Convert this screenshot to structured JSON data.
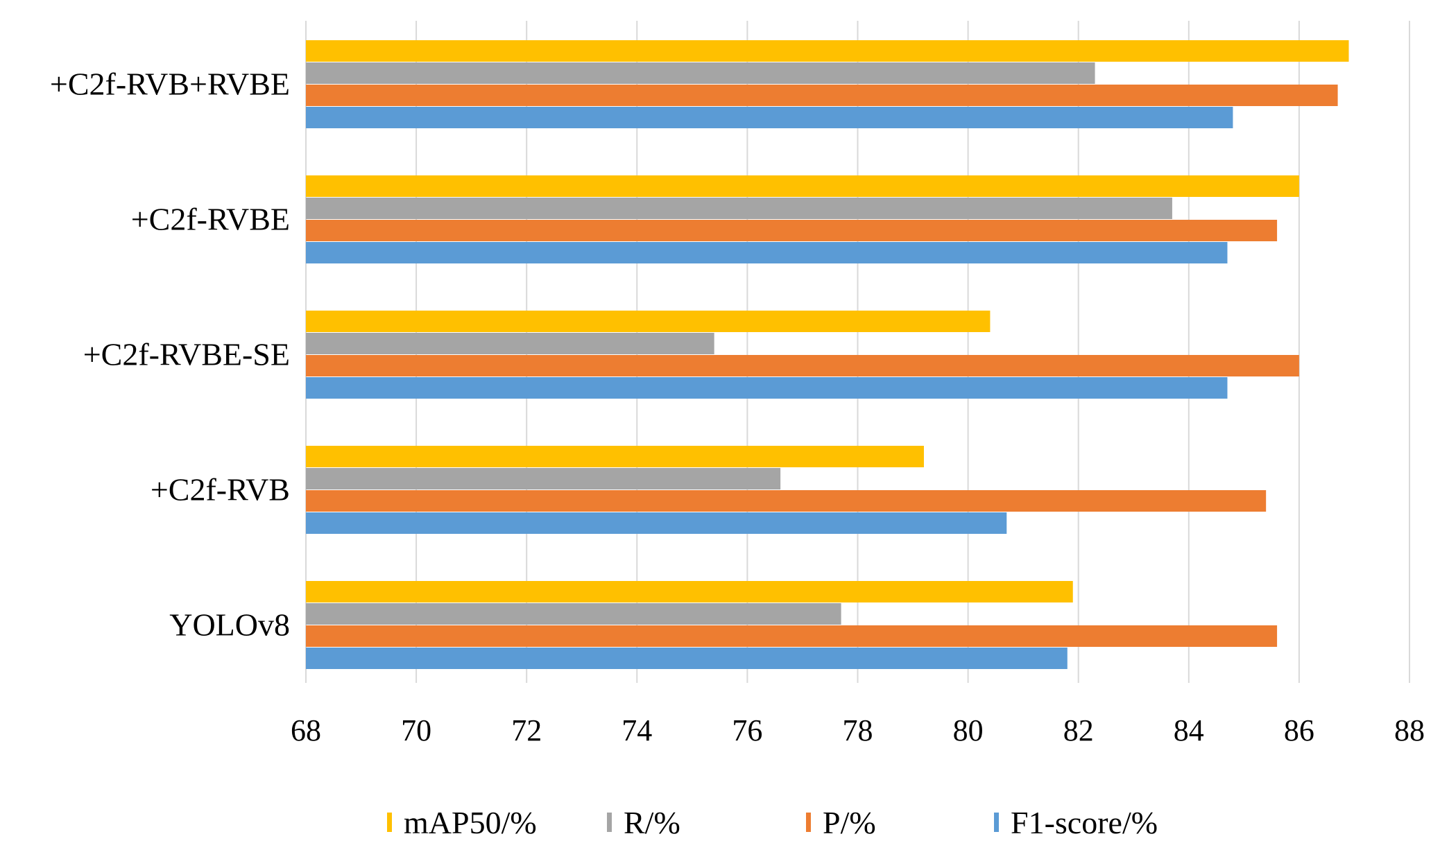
{
  "chart_data": {
    "type": "bar",
    "orientation": "horizontal",
    "title": "",
    "xlabel": "",
    "ylabel": "",
    "xlim": [
      68,
      88
    ],
    "xticks": [
      68,
      70,
      72,
      74,
      76,
      78,
      80,
      82,
      84,
      86,
      88
    ],
    "grid": "vertical",
    "legend_position": "bottom",
    "categories": [
      "+C2f-RVB+RVBE",
      "+C2f-RVBE",
      "+C2f-RVBE-SE",
      "+C2f-RVB",
      "YOLOv8"
    ],
    "series": [
      {
        "name": "mAP50/%",
        "color": "#FFC000",
        "values": [
          86.9,
          86.0,
          80.4,
          79.2,
          81.9
        ]
      },
      {
        "name": "R/%",
        "color": "#A5A5A5",
        "values": [
          82.3,
          83.7,
          75.4,
          76.6,
          77.7
        ]
      },
      {
        "name": "P/%",
        "color": "#ED7D31",
        "values": [
          86.7,
          85.6,
          86.0,
          85.4,
          85.6
        ]
      },
      {
        "name": "F1-score/%",
        "color": "#5B9BD5",
        "values": [
          84.8,
          84.7,
          84.7,
          80.7,
          81.8
        ]
      }
    ]
  }
}
